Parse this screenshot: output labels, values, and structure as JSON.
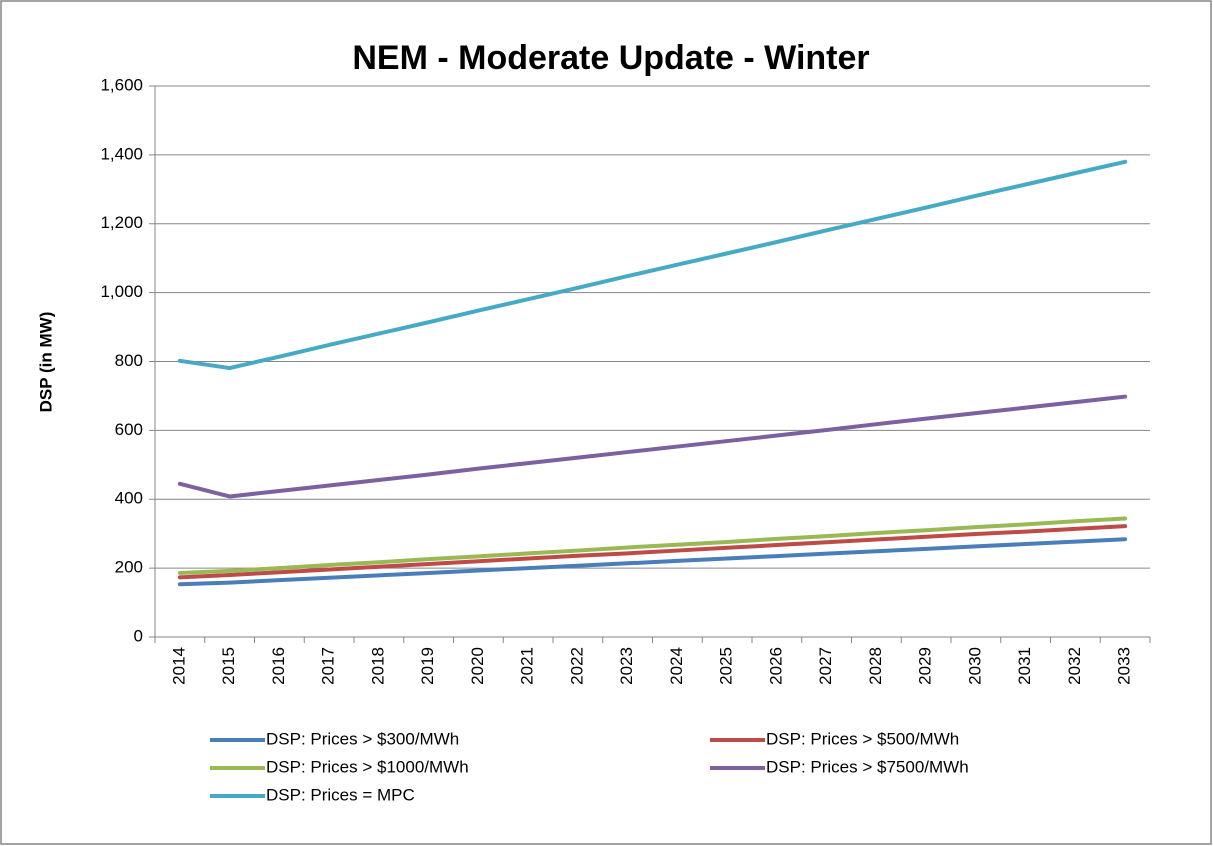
{
  "chart_data": {
    "type": "line",
    "title": "NEM - Moderate Update - Winter",
    "y_label": "DSP (in MW)",
    "categories": [
      "2014",
      "2015",
      "2016",
      "2017",
      "2018",
      "2019",
      "2020",
      "2021",
      "2022",
      "2023",
      "2024",
      "2025",
      "2026",
      "2027",
      "2028",
      "2029",
      "2030",
      "2031",
      "2032",
      "2033"
    ],
    "series": [
      {
        "name": "DSP: Prices > $300/MWh",
        "color": "#4a7ebb",
        "values": [
          153,
          158,
          165,
          172,
          179,
          186,
          193,
          200,
          207,
          214,
          221,
          228,
          235,
          242,
          249,
          256,
          263,
          270,
          277,
          284
        ]
      },
      {
        "name": "DSP: Prices > $500/MWh",
        "color": "#be4b48",
        "values": [
          173,
          180,
          188,
          196,
          204,
          212,
          220,
          228,
          236,
          243,
          251,
          259,
          267,
          275,
          283,
          291,
          299,
          306,
          314,
          322
        ]
      },
      {
        "name": "DSP: Prices > $1000/MWh",
        "color": "#98b954",
        "values": [
          186,
          192,
          200,
          209,
          217,
          226,
          234,
          243,
          251,
          260,
          268,
          276,
          285,
          293,
          302,
          310,
          319,
          327,
          336,
          344
        ]
      },
      {
        "name": "DSP: Prices > $7500/MWh",
        "color": "#7d60a0",
        "values": [
          445,
          408,
          424,
          440,
          456,
          472,
          489,
          505,
          521,
          537,
          553,
          569,
          585,
          601,
          618,
          634,
          650,
          666,
          682,
          698
        ]
      },
      {
        "name": "DSP: Prices = MPC",
        "color": "#46aac5",
        "values": [
          802,
          781,
          814,
          848,
          881,
          914,
          948,
          981,
          1014,
          1048,
          1081,
          1114,
          1147,
          1181,
          1214,
          1247,
          1281,
          1314,
          1347,
          1380
        ]
      }
    ],
    "ylim": [
      0,
      1600
    ],
    "yticks": [
      0,
      200,
      400,
      600,
      800,
      {
        "value": 1000,
        "label": "1,000"
      },
      {
        "value": 1200,
        "label": "1,200"
      },
      {
        "value": 1400,
        "label": "1,400"
      },
      {
        "value": 1600,
        "label": "1,600"
      }
    ],
    "grid": true,
    "legend": "bottom"
  }
}
